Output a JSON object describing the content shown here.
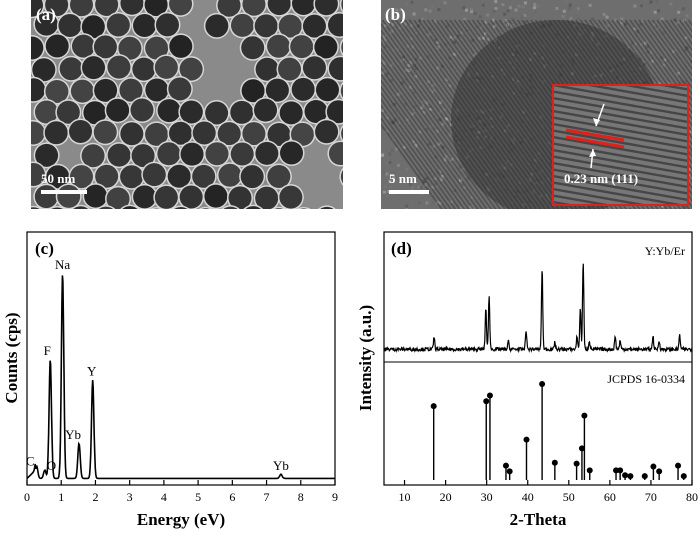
{
  "panels": {
    "a": {
      "label": "(a)",
      "scale_bar": "50 nm"
    },
    "b": {
      "label": "(b)",
      "scale_bar": "5 nm",
      "annotation": "0.23 nm (111)"
    },
    "c": {
      "label": "(c)"
    },
    "d": {
      "label": "(d)"
    }
  },
  "chart_data": [
    {
      "panel": "c",
      "type": "line",
      "xlabel": "Energy (eV)",
      "ylabel": "Counts (cps)",
      "xlim": [
        0,
        9
      ],
      "x_ticks": [
        "0",
        "1",
        "2",
        "3",
        "4",
        "5",
        "6",
        "7",
        "8",
        "9"
      ],
      "y_ticks_shown": false,
      "grid": false,
      "peaks": [
        {
          "element": "C",
          "energy": 0.28,
          "height": 0.06
        },
        {
          "element": "O",
          "energy": 0.52,
          "height": 0.04
        },
        {
          "element": "F",
          "energy": 0.68,
          "height": 0.58
        },
        {
          "element": "Na",
          "energy": 1.04,
          "height": 1.0
        },
        {
          "element": "Yb",
          "energy": 1.52,
          "height": 0.17
        },
        {
          "element": "Y",
          "energy": 1.92,
          "height": 0.48
        },
        {
          "element": "Yb",
          "energy": 7.42,
          "height": 0.02
        }
      ]
    },
    {
      "panel": "d",
      "type": "line",
      "xlabel": "2-Theta",
      "ylabel": "Intensity (a.u.)",
      "xlim": [
        5,
        80
      ],
      "x_ticks": [
        "10",
        "20",
        "30",
        "40",
        "50",
        "60",
        "70",
        "80"
      ],
      "y_ticks_shown": false,
      "grid": false,
      "series": [
        {
          "name": "Y:Yb/Er",
          "peaks": [
            {
              "x": 17.2,
              "y": 0.14
            },
            {
              "x": 29.8,
              "y": 0.47
            },
            {
              "x": 30.6,
              "y": 0.62
            },
            {
              "x": 35.3,
              "y": 0.09
            },
            {
              "x": 39.6,
              "y": 0.22
            },
            {
              "x": 43.5,
              "y": 0.93
            },
            {
              "x": 46.6,
              "y": 0.08
            },
            {
              "x": 52.0,
              "y": 0.15
            },
            {
              "x": 52.8,
              "y": 0.47
            },
            {
              "x": 53.5,
              "y": 1.0
            },
            {
              "x": 55.0,
              "y": 0.1
            },
            {
              "x": 61.3,
              "y": 0.15
            },
            {
              "x": 62.5,
              "y": 0.1
            },
            {
              "x": 70.5,
              "y": 0.15
            },
            {
              "x": 72.0,
              "y": 0.1
            },
            {
              "x": 77.0,
              "y": 0.16
            }
          ]
        },
        {
          "name": "JCPDS 16-0334",
          "peaks": [
            {
              "x": 17.1,
              "y": 0.77
            },
            {
              "x": 29.9,
              "y": 0.82
            },
            {
              "x": 30.8,
              "y": 0.88
            },
            {
              "x": 34.7,
              "y": 0.15
            },
            {
              "x": 35.6,
              "y": 0.09
            },
            {
              "x": 39.7,
              "y": 0.42
            },
            {
              "x": 43.5,
              "y": 1.0
            },
            {
              "x": 46.6,
              "y": 0.18
            },
            {
              "x": 51.9,
              "y": 0.17
            },
            {
              "x": 53.2,
              "y": 0.33
            },
            {
              "x": 53.8,
              "y": 0.67
            },
            {
              "x": 55.1,
              "y": 0.1
            },
            {
              "x": 61.5,
              "y": 0.1
            },
            {
              "x": 62.5,
              "y": 0.1
            },
            {
              "x": 63.7,
              "y": 0.05
            },
            {
              "x": 65.0,
              "y": 0.04
            },
            {
              "x": 68.5,
              "y": 0.04
            },
            {
              "x": 70.6,
              "y": 0.14
            },
            {
              "x": 72.0,
              "y": 0.09
            },
            {
              "x": 76.6,
              "y": 0.15
            },
            {
              "x": 78.0,
              "y": 0.04
            }
          ]
        }
      ]
    }
  ]
}
